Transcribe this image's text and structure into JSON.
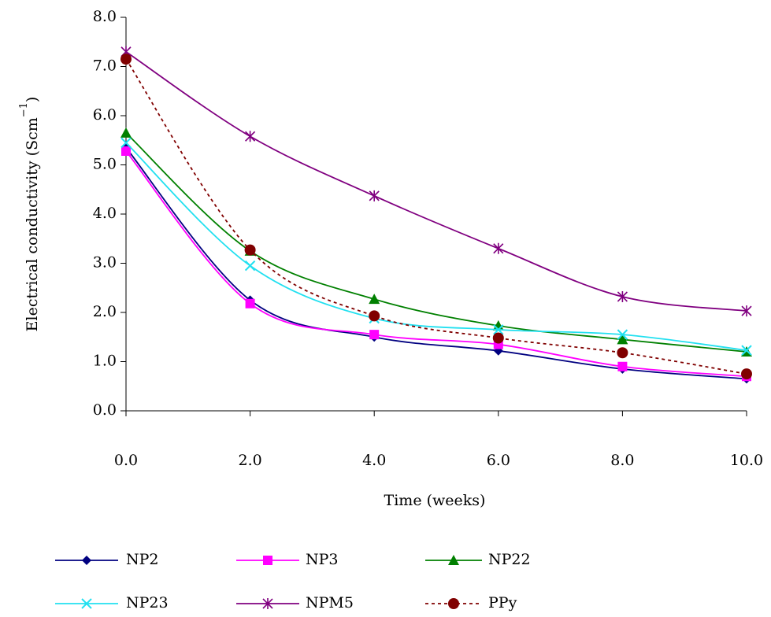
{
  "chart_data": {
    "type": "line",
    "x_label": "Time (weeks)",
    "y_label": {
      "text": "Electrical conductivity (Scm",
      "superscript": "−1",
      "close": ")"
    },
    "x": [
      0,
      2,
      4,
      6,
      8,
      10
    ],
    "xlim": [
      0,
      10
    ],
    "xticks": [
      {
        "value": 0,
        "label": "0.0"
      },
      {
        "value": 2,
        "label": "2.0"
      },
      {
        "value": 4,
        "label": "4.0"
      },
      {
        "value": 6,
        "label": "6.0"
      },
      {
        "value": 8,
        "label": "8.0"
      },
      {
        "value": 10,
        "label": "10.0"
      }
    ],
    "ylim": [
      0,
      8
    ],
    "yticks": [
      {
        "value": 0,
        "label": "0.0"
      },
      {
        "value": 1,
        "label": "1.0"
      },
      {
        "value": 2,
        "label": "2.0"
      },
      {
        "value": 3,
        "label": "3.0"
      },
      {
        "value": 4,
        "label": "4.0"
      },
      {
        "value": 5,
        "label": "5.0"
      },
      {
        "value": 6,
        "label": "6.0"
      },
      {
        "value": 7,
        "label": "7.0"
      },
      {
        "value": 8,
        "label": "8.0"
      }
    ],
    "grid": false,
    "smooth": true,
    "legend": "bottom",
    "series": [
      {
        "name": "NP2",
        "color": "#000080",
        "marker": "diamond",
        "dashed": false,
        "values": [
          5.35,
          2.25,
          1.5,
          1.22,
          0.85,
          0.65
        ]
      },
      {
        "name": "NP3",
        "color": "#ff00ff",
        "marker": "square",
        "dashed": false,
        "values": [
          5.28,
          2.18,
          1.55,
          1.35,
          0.9,
          0.7
        ]
      },
      {
        "name": "NP22",
        "color": "#008000",
        "marker": "triangle",
        "dashed": false,
        "values": [
          5.65,
          3.25,
          2.27,
          1.73,
          1.45,
          1.2
        ]
      },
      {
        "name": "NP23",
        "color": "#22e0f0",
        "marker": "x",
        "dashed": false,
        "values": [
          5.45,
          2.95,
          1.88,
          1.65,
          1.55,
          1.23
        ]
      },
      {
        "name": "NPM5",
        "color": "#800080",
        "marker": "asterisk",
        "dashed": false,
        "values": [
          7.3,
          5.58,
          4.37,
          3.3,
          2.32,
          2.03
        ]
      },
      {
        "name": "PPy",
        "color": "#800000",
        "marker": "circle",
        "dashed": true,
        "values": [
          7.15,
          3.27,
          1.93,
          1.48,
          1.18,
          0.75
        ]
      }
    ]
  }
}
